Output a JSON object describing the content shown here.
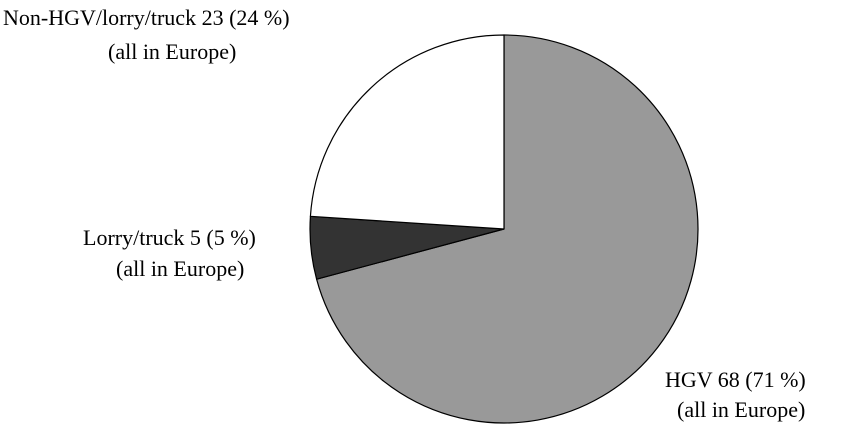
{
  "chart_data": {
    "type": "pie",
    "slices": [
      {
        "label": "HGV 68 (71 %)",
        "sublabel": "(all in Europe)",
        "value": 68,
        "percent": 71,
        "color": "#999999"
      },
      {
        "label": "Lorry/truck 5 (5 %)",
        "sublabel": "(all in Europe)",
        "value": 5,
        "percent": 5,
        "color": "#333333"
      },
      {
        "label": "Non-HGV/lorry/truck 23 (24 %)",
        "sublabel": "(all in Europe)",
        "value": 23,
        "percent": 24,
        "color": "#ffffff"
      }
    ],
    "start": "12 o'clock",
    "direction": "clockwise"
  }
}
